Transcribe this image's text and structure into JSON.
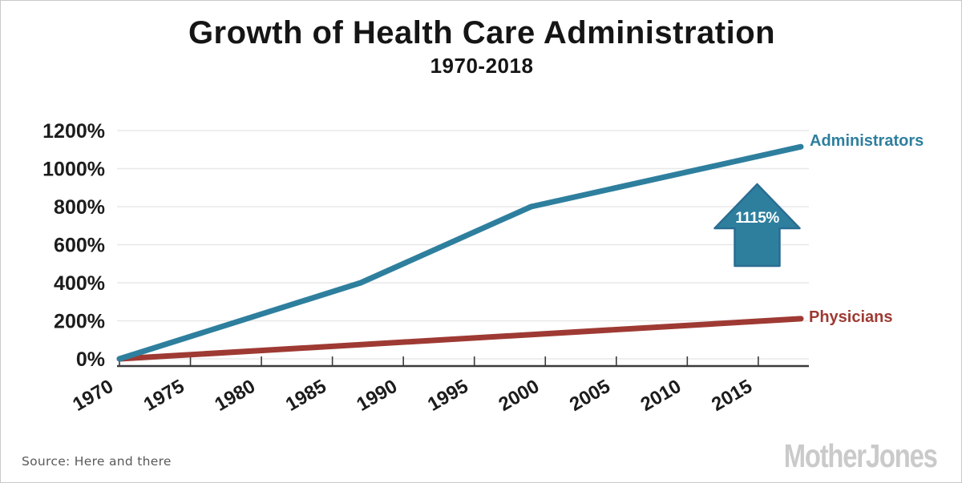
{
  "header": {
    "title": "Growth of Health Care Administration",
    "subtitle": "1970-2018"
  },
  "chart_data": {
    "type": "line",
    "title": "Growth of Health Care Administration",
    "subtitle": "1970-2018",
    "xlabel": "",
    "ylabel": "",
    "xlim": [
      1970,
      2018
    ],
    "ylim": [
      0,
      1200
    ],
    "grid": "horizontal",
    "x_ticks": [
      1970,
      1975,
      1980,
      1985,
      1990,
      1995,
      2000,
      2005,
      2010,
      2015
    ],
    "y_ticks": [
      0,
      200,
      400,
      600,
      800,
      1000,
      1200
    ],
    "y_tick_labels": [
      "0%",
      "200%",
      "400%",
      "600%",
      "800%",
      "1000%",
      "1200%"
    ],
    "legend_position": "line-end-labels",
    "series": [
      {
        "name": "Administrators",
        "color": "#2e7f9e",
        "points": [
          [
            1970,
            0
          ],
          [
            1987,
            400
          ],
          [
            1999,
            800
          ],
          [
            2018,
            1115
          ]
        ]
      },
      {
        "name": "Physicians",
        "color": "#9e3a33",
        "points": [
          [
            1970,
            0
          ],
          [
            2018,
            211
          ]
        ]
      }
    ],
    "annotation": {
      "text": "1115%",
      "shape": "up-arrow",
      "fill": "#2e7f9e",
      "stroke": "#2a6d92",
      "text_color": "#ffffff"
    }
  },
  "footer": {
    "source": "Source: Here and there",
    "logo": "MotherJones"
  }
}
